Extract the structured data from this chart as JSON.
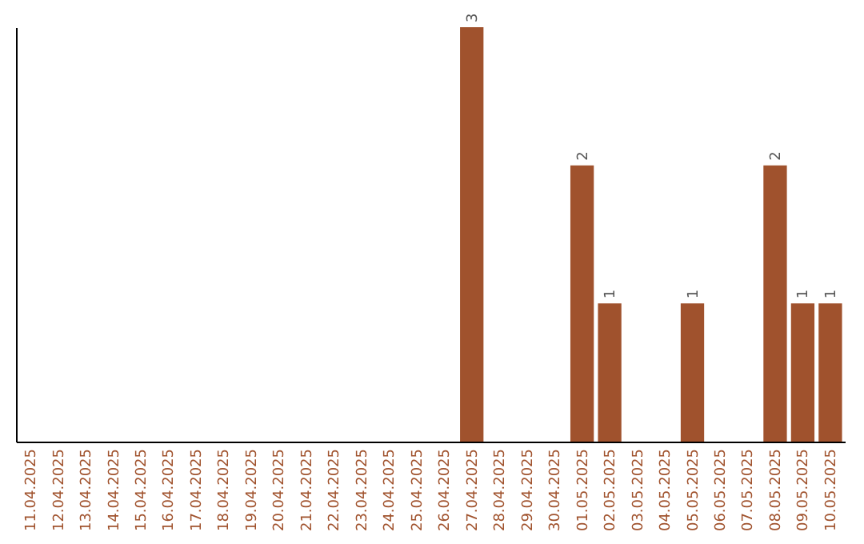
{
  "chart_data": {
    "type": "bar",
    "categories": [
      "11.04.2025",
      "12.04.2025",
      "13.04.2025",
      "14.04.2025",
      "15.04.2025",
      "16.04.2025",
      "17.04.2025",
      "18.04.2025",
      "19.04.2025",
      "20.04.2025",
      "21.04.2025",
      "22.04.2025",
      "23.04.2025",
      "24.04.2025",
      "25.04.2025",
      "26.04.2025",
      "27.04.2025",
      "28.04.2025",
      "29.04.2025",
      "30.04.2025",
      "01.05.2025",
      "02.05.2025",
      "03.05.2025",
      "04.05.2025",
      "05.05.2025",
      "06.05.2025",
      "07.05.2025",
      "08.05.2025",
      "09.05.2025",
      "10.05.2025"
    ],
    "values": [
      null,
      null,
      null,
      null,
      null,
      null,
      null,
      null,
      null,
      null,
      null,
      null,
      null,
      null,
      null,
      null,
      3,
      null,
      null,
      null,
      2,
      1,
      null,
      null,
      1,
      null,
      null,
      2,
      1,
      1
    ],
    "color": "#a0522d",
    "ylim": [
      0,
      3
    ],
    "data_labels": true,
    "tick_labels": "x"
  }
}
